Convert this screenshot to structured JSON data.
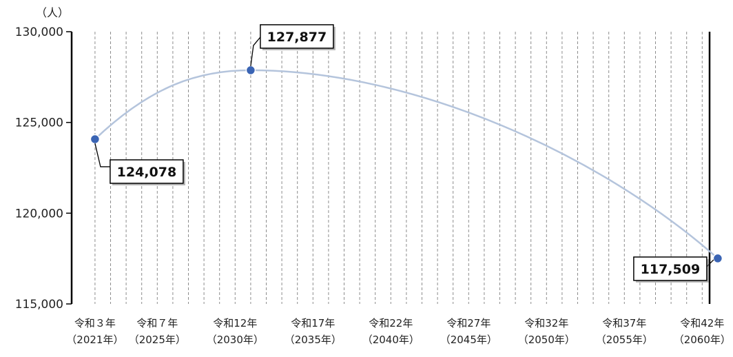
{
  "chart_data": {
    "type": "line",
    "title": "",
    "unit_label": "（人）",
    "ylabel": "",
    "xlabel": "",
    "ylim": [
      115000,
      130000
    ],
    "y_ticks": [
      "130,000",
      "125,000",
      "120,000",
      "115,000"
    ],
    "y_tick_values": [
      130000,
      125000,
      120000,
      115000
    ],
    "x_range": [
      2021,
      2060
    ],
    "x_ticks": [
      {
        "year": 2021,
        "line1": "令和３年",
        "line2": "（2021年）"
      },
      {
        "year": 2025,
        "line1": "令和７年",
        "line2": "（2025年）"
      },
      {
        "year": 2030,
        "line1": "令和12年",
        "line2": "（2030年）"
      },
      {
        "year": 2035,
        "line1": "令和17年",
        "line2": "（2035年）"
      },
      {
        "year": 2040,
        "line1": "令和22年",
        "line2": "（2040年）"
      },
      {
        "year": 2045,
        "line1": "令和27年",
        "line2": "（2045年）"
      },
      {
        "year": 2050,
        "line1": "令和32年",
        "line2": "（2050年）"
      },
      {
        "year": 2055,
        "line1": "令和37年",
        "line2": "（2055年）"
      },
      {
        "year": 2060,
        "line1": "令和42年",
        "line2": "（2060年）"
      }
    ],
    "series": [
      {
        "points": [
          {
            "x": 2021,
            "y": 124078,
            "label": "124,078"
          },
          {
            "x": 2031,
            "y": 127877,
            "label": "127,877"
          },
          {
            "x": 2061,
            "y": 117509,
            "label": "117,509"
          }
        ]
      }
    ],
    "grid": "vertical dashed, yearly",
    "colors": {
      "line": "#b4c4dc",
      "marker": "#3a64b4",
      "axis": "#000000",
      "grid": "#8c8c8c"
    }
  }
}
